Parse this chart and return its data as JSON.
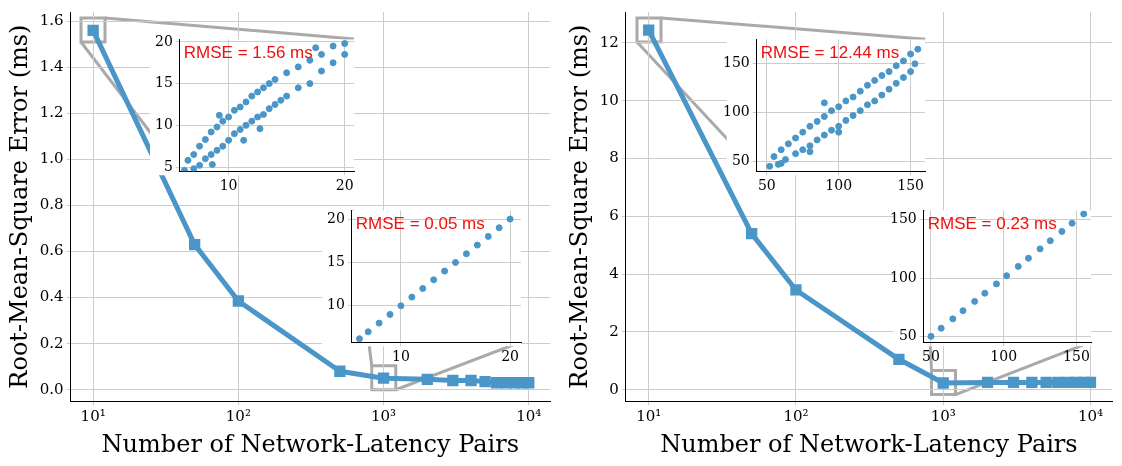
{
  "chart_data": [
    {
      "type": "line",
      "xlabel": "Number of Network-Latency Pairs",
      "ylabel": "Root-Mean-Square Error (ms)",
      "log": "x",
      "grid": true,
      "marker": "square",
      "line_style": "solid",
      "x": [
        10,
        50,
        100,
        500,
        1000,
        2000,
        3000,
        4000,
        5000,
        6000,
        7000,
        8000,
        9000,
        10000
      ],
      "series": [
        {
          "color": "#4a96c8",
          "values": [
            1.56,
            0.63,
            0.385,
            0.08,
            0.05,
            0.045,
            0.04,
            0.04,
            0.035,
            0.03,
            0.03,
            0.03,
            0.03,
            0.03
          ]
        }
      ],
      "xlim": [
        7,
        14000
      ],
      "ylim": [
        -0.05,
        1.64
      ],
      "xticks": [
        {
          "value": 10,
          "label": "10¹"
        },
        {
          "value": 100,
          "label": "10²"
        },
        {
          "value": 1000,
          "label": "10³"
        },
        {
          "value": 10000,
          "label": "10⁴"
        }
      ],
      "yticks": [
        {
          "value": 0,
          "label": "0.0"
        },
        {
          "value": 0.2,
          "label": "0.2"
        },
        {
          "value": 0.4,
          "label": "0.4"
        },
        {
          "value": 0.6,
          "label": "0.6"
        },
        {
          "value": 0.8,
          "label": "0.8"
        },
        {
          "value": 1,
          "label": "1.0"
        },
        {
          "value": 1.2,
          "label": "1.2"
        },
        {
          "value": 1.4,
          "label": "1.4"
        },
        {
          "value": 1.6,
          "label": "1.6"
        }
      ]
    },
    {
      "type": "scatter",
      "annotations": [
        "RMSE = 1.56 ms"
      ],
      "grid": true,
      "marker": "circle",
      "x": [
        6.2,
        6.5,
        7,
        7,
        7.5,
        7.5,
        8,
        8,
        8.5,
        8.5,
        9,
        9,
        9.5,
        9.5,
        10,
        10,
        10.5,
        10.5,
        11,
        11,
        11.5,
        11.5,
        12,
        12,
        12.5,
        12.5,
        13,
        13,
        13.5,
        13.5,
        14,
        14,
        14.5,
        15,
        15,
        16,
        16,
        17,
        17,
        17.5,
        18,
        18,
        19,
        19,
        20,
        20,
        8.6,
        11.3,
        12.7,
        9.2
      ],
      "series": [
        {
          "color": "#4a96c8",
          "values": [
            4.6,
            5.8,
            4.8,
            6.5,
            5.2,
            7.5,
            6,
            8.3,
            6.5,
            9.2,
            7,
            9.8,
            7.5,
            10.5,
            8.2,
            11,
            9,
            11.8,
            9.5,
            12.2,
            10,
            12.8,
            10.5,
            13.5,
            11,
            14,
            11.3,
            14.5,
            12,
            15,
            12.5,
            15.5,
            13,
            13.5,
            16.3,
            14.5,
            17,
            15,
            17.8,
            19.3,
            16.5,
            18.5,
            17.5,
            19.5,
            18.5,
            19.8,
            5.3,
            8.2,
            9.6,
            11.2
          ]
        }
      ],
      "xlim": [
        5.8,
        20.8
      ],
      "ylim": [
        4.5,
        20.3
      ],
      "xticks": [
        10,
        20
      ],
      "yticks": [
        5,
        10,
        15,
        20
      ]
    },
    {
      "type": "scatter",
      "annotations": [
        "RMSE = 0.05 ms"
      ],
      "grid": true,
      "marker": "circle",
      "x": [
        6.2,
        7,
        8,
        9,
        10,
        11,
        12,
        13,
        14,
        15,
        16,
        17,
        18,
        19,
        20
      ],
      "series": [
        {
          "color": "#4a96c8",
          "values": [
            6.2,
            7,
            8,
            9,
            10,
            11,
            12,
            13,
            14,
            15,
            16,
            17,
            18,
            19,
            20
          ]
        }
      ],
      "xlim": [
        5.5,
        21
      ],
      "ylim": [
        5.8,
        21
      ],
      "xticks": [
        10,
        20
      ],
      "yticks": [
        10,
        15,
        20
      ]
    },
    {
      "type": "line",
      "xlabel": "Number of Network-Latency Pairs",
      "ylabel": "Root-Mean-Square Error (ms)",
      "log": "x",
      "grid": true,
      "marker": "square",
      "line_style": "solid",
      "x": [
        10,
        50,
        100,
        500,
        1000,
        2000,
        3000,
        4000,
        5000,
        6000,
        7000,
        8000,
        9000,
        10000
      ],
      "series": [
        {
          "color": "#4a96c8",
          "values": [
            12.44,
            5.4,
            3.45,
            1.05,
            0.23,
            0.25,
            0.25,
            0.25,
            0.25,
            0.25,
            0.25,
            0.25,
            0.25,
            0.25
          ]
        }
      ],
      "xlim": [
        7,
        14000
      ],
      "ylim": [
        -0.4,
        13.07
      ],
      "xticks": [
        {
          "value": 10,
          "label": "10¹"
        },
        {
          "value": 100,
          "label": "10²"
        },
        {
          "value": 1000,
          "label": "10³"
        },
        {
          "value": 10000,
          "label": "10⁴"
        }
      ],
      "yticks": [
        0,
        2,
        4,
        6,
        8,
        10,
        12
      ]
    },
    {
      "type": "scatter",
      "annotations": [
        "RMSE = 12.44 ms"
      ],
      "grid": true,
      "marker": "circle",
      "x": [
        52,
        55,
        58,
        60,
        63,
        65,
        70,
        70,
        75,
        75,
        80,
        80,
        85,
        85,
        90,
        90,
        95,
        95,
        100,
        100,
        105,
        105,
        110,
        110,
        115,
        115,
        120,
        120,
        125,
        125,
        130,
        130,
        135,
        135,
        140,
        140,
        145,
        145,
        150,
        150,
        153,
        155,
        60,
        80,
        100,
        90
      ],
      "series": [
        {
          "color": "#4a96c8",
          "values": [
            45,
            55,
            47,
            62,
            52,
            68,
            58,
            74,
            62,
            80,
            66,
            86,
            72,
            91,
            77,
            96,
            82,
            102,
            86,
            106,
            92,
            112,
            97,
            116,
            102,
            122,
            108,
            128,
            112,
            133,
            118,
            138,
            124,
            142,
            130,
            148,
            136,
            153,
            142,
            160,
            150,
            165,
            48,
            60,
            80,
            110
          ]
        }
      ],
      "xlim": [
        43,
        160
      ],
      "ylim": [
        40,
        175
      ],
      "xticks": [
        50,
        100,
        150
      ],
      "yticks": [
        50,
        100,
        150
      ]
    },
    {
      "type": "scatter",
      "annotations": [
        "RMSE = 0.23 ms"
      ],
      "grid": true,
      "marker": "circle",
      "x": [
        50,
        57,
        65,
        72,
        80,
        87,
        95,
        102,
        110,
        117,
        125,
        132,
        140,
        147,
        155
      ],
      "series": [
        {
          "color": "#4a96c8",
          "values": [
            50,
            57,
            65,
            72,
            80,
            87,
            95,
            102,
            110,
            117,
            125,
            132,
            140,
            147,
            155
          ]
        }
      ],
      "xlim": [
        45,
        160
      ],
      "ylim": [
        45,
        158
      ],
      "xticks": [
        50,
        100,
        150
      ],
      "yticks": [
        50,
        100,
        150
      ]
    }
  ]
}
